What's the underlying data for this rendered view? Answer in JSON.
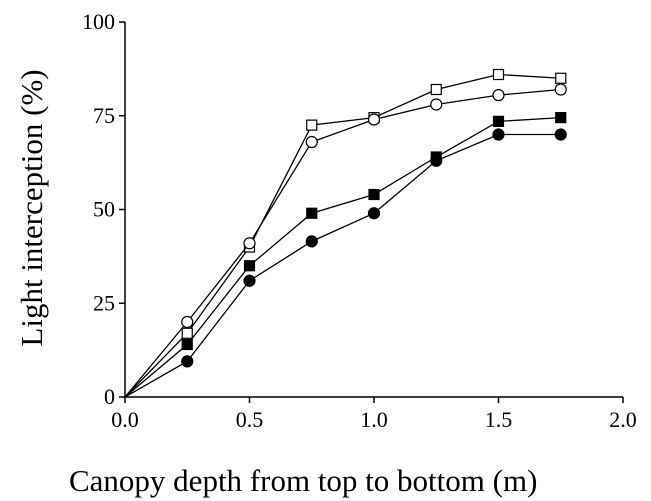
{
  "chart_data": {
    "type": "line",
    "title": "",
    "xlabel": "Canopy depth from top to bottom (m)",
    "ylabel": "Light interception (%)",
    "xlim": [
      0.0,
      2.0
    ],
    "ylim": [
      0,
      100
    ],
    "xticks": [
      "0.0",
      "0.5",
      "1.0",
      "1.5",
      "2.0"
    ],
    "yticks": [
      "0",
      "25",
      "50",
      "75",
      "100"
    ],
    "grid": false,
    "legend": "none",
    "x": [
      0.0,
      0.25,
      0.5,
      0.75,
      1.0,
      1.25,
      1.5,
      1.75
    ],
    "series": [
      {
        "marker": "open-square",
        "values": [
          0,
          17,
          40,
          72.5,
          74.5,
          82,
          86,
          85
        ]
      },
      {
        "marker": "open-circle",
        "values": [
          0,
          20,
          41,
          68,
          74,
          78,
          80.5,
          82
        ]
      },
      {
        "marker": "filled-square",
        "values": [
          0,
          14,
          35,
          49,
          54,
          64,
          73.5,
          74.5
        ]
      },
      {
        "marker": "filled-circle",
        "values": [
          0,
          9.5,
          31,
          41.5,
          49,
          63,
          70,
          70
        ]
      }
    ]
  }
}
